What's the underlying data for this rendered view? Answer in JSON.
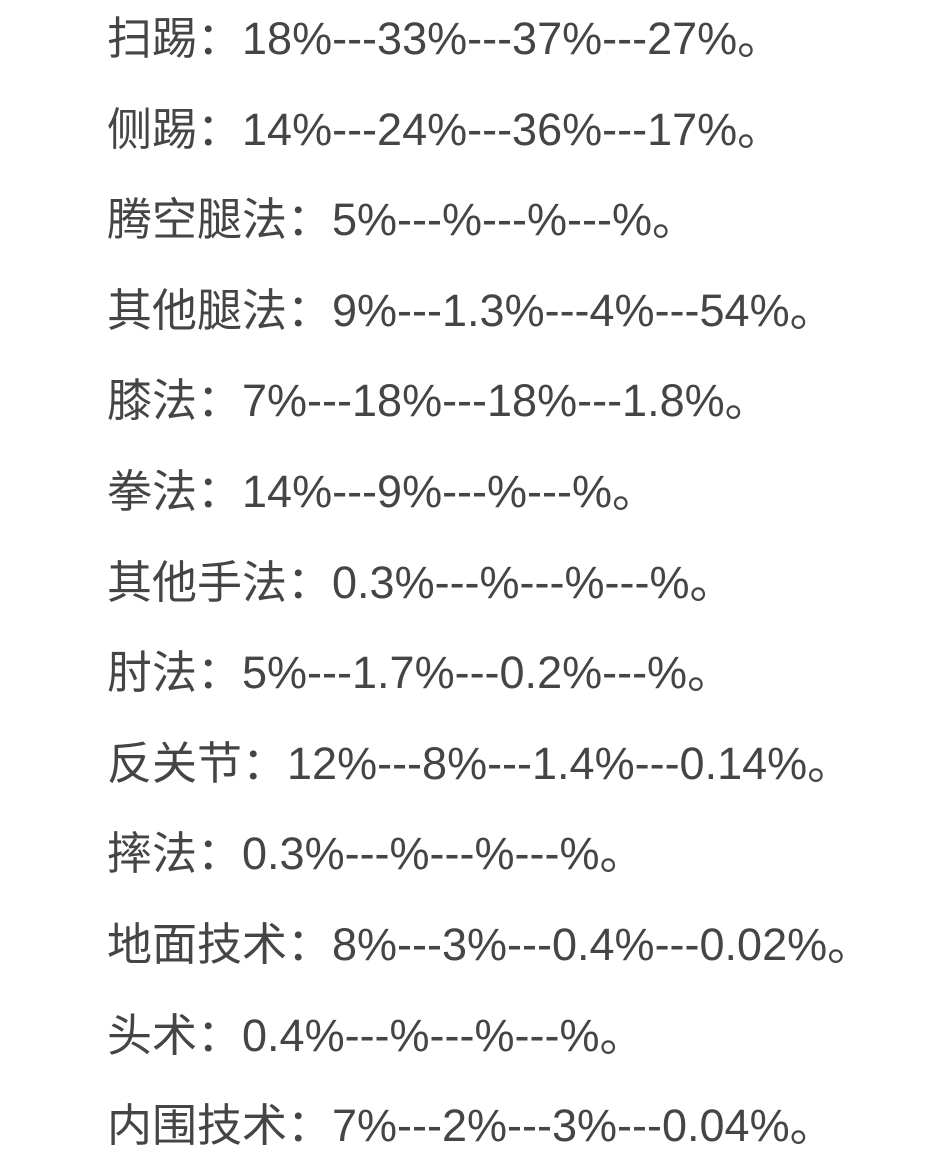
{
  "lines": [
    {
      "label": "扫踢：",
      "values": "18%---33%---37%---27%。"
    },
    {
      "label": "侧踢：",
      "values": "14%---24%---36%---17%。"
    },
    {
      "label": "腾空腿法：",
      "values": "5%---%---%---%。"
    },
    {
      "label": "其他腿法：",
      "values": "9%---1.3%---4%---54%。"
    },
    {
      "label": "膝法：",
      "values": "7%---18%---18%---1.8%。"
    },
    {
      "label": "拳法：",
      "values": "14%---9%---%---%。"
    },
    {
      "label": "其他手法：",
      "values": "0.3%---%---%---%。"
    },
    {
      "label": "肘法：",
      "values": "5%---1.7%---0.2%---%。"
    },
    {
      "label": "反关节：",
      "values": "12%---8%---1.4%---0.14%。"
    },
    {
      "label": "摔法：",
      "values": "0.3%---%---%---%。"
    },
    {
      "label": "地面技术：",
      "values": "8%---3%---0.4%---0.02%。"
    },
    {
      "label": "头术：",
      "values": "0.4%---%---%---%。"
    },
    {
      "label": "内围技术：",
      "values": "7%---2%---3%---0.04%。"
    }
  ]
}
